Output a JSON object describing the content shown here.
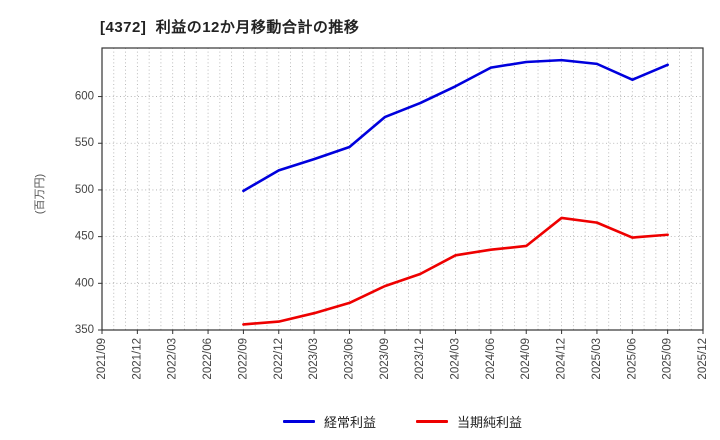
{
  "title": "[4372]  利益の12か月移動合計の推移",
  "y_axis_label": "(百万円)",
  "colors": {
    "ordinary_profit_line": "#0000dd",
    "net_income_line": "#ee0000",
    "grid": "#aaaaaa",
    "frame": "#333333",
    "tick_text": "#444444"
  },
  "legend": {
    "items": [
      {
        "label": "経常利益",
        "color": "#0000dd"
      },
      {
        "label": "当期純利益",
        "color": "#ee0000"
      }
    ]
  },
  "chart_data": {
    "type": "line",
    "title": "[4372]  利益の12か月移動合計の推移",
    "xlabel": "",
    "ylabel": "(百万円)",
    "x_tick_labels": [
      "2021/09",
      "2021/12",
      "2022/03",
      "2022/06",
      "2022/09",
      "2022/12",
      "2023/03",
      "2023/06",
      "2023/09",
      "2023/12",
      "2024/03",
      "2024/06",
      "2024/09",
      "2024/12",
      "2025/03",
      "2025/06",
      "2025/09",
      "2025/12"
    ],
    "categories": [
      "2022/09",
      "2022/12",
      "2023/03",
      "2023/06",
      "2023/09",
      "2023/12",
      "2024/03",
      "2024/06",
      "2024/09",
      "2024/12",
      "2025/03",
      "2025/06",
      "2025/09"
    ],
    "series": [
      {
        "name": "経常利益",
        "color": "#0000dd",
        "values": [
          499,
          521,
          533,
          546,
          578,
          593,
          611,
          631,
          637,
          639,
          635,
          618,
          634
        ]
      },
      {
        "name": "当期純利益",
        "color": "#ee0000",
        "values": [
          356,
          359,
          368,
          379,
          397,
          410,
          430,
          436,
          440,
          470,
          465,
          449,
          452
        ]
      }
    ],
    "ylim": [
      350,
      652
    ],
    "yticks": [
      350,
      400,
      450,
      500,
      550,
      600
    ],
    "months_per_gridline": 1,
    "grid": true,
    "grid_style": "dotted",
    "legend_position": "bottom-center"
  }
}
